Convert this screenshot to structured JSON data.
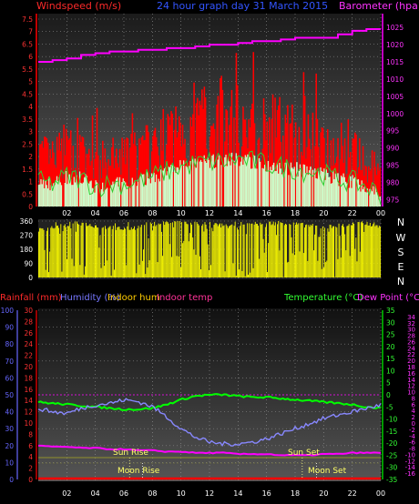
{
  "header": {
    "wind_label": "Windspeed (m/s)",
    "title": "24 hour graph day  31 March 2015",
    "baro_label": "Barometer (hpa)"
  },
  "bottom_header": {
    "rain_label": "Rainfall (mm)",
    "humidity_label": "Humidity (%)",
    "indoor_hum_label": "Indoor hum",
    "indoor_temp_label": "Indoor temp",
    "temp_label": "Temperature (°C)",
    "dew_label": "Dew Point (°C)"
  },
  "compass_labels": [
    "N",
    "W",
    "S",
    "E",
    "N"
  ],
  "annotations": {
    "sun_rise": "Sun Rise",
    "sun_set": "Sun Set",
    "moon_rise": "Moon Rise",
    "moon_set": "Moon Set"
  },
  "colors": {
    "wind": "#ff0000",
    "gust": "#33cc33",
    "wind_avg": "#ccffcc",
    "barometer": "#ff00ff",
    "direction": "#ffff00",
    "temperature": "#00ff00",
    "humidity": "#8888ff",
    "rain": "#ff0000",
    "dew": "#ff00ff",
    "indoor_temp": "#ff00ff",
    "sun": "#ffff00"
  },
  "chart_data": [
    {
      "type": "line",
      "name": "wind-barometer",
      "x_ticks": [
        "02",
        "04",
        "06",
        "08",
        "10",
        "12",
        "14",
        "16",
        "18",
        "20",
        "22",
        "00"
      ],
      "y_left_ticks": [
        0,
        0.5,
        1,
        1.5,
        2,
        2.5,
        3,
        3.5,
        4,
        4.5,
        5,
        5.5,
        6,
        6.5,
        7,
        7.5
      ],
      "y_left_range": [
        0,
        7.5
      ],
      "y_right_ticks": [
        975,
        980,
        985,
        990,
        995,
        1000,
        1005,
        1010,
        1015,
        1020,
        1025
      ],
      "y_right_range": [
        973,
        1029
      ],
      "series": [
        {
          "x": [
            0,
            1,
            2,
            3,
            4,
            5,
            6,
            7,
            8,
            9,
            10,
            11,
            12,
            13,
            14,
            15,
            16,
            17,
            18,
            19,
            20,
            21,
            22,
            23,
            24
          ],
          "values": [
            2.0,
            1.8,
            2.2,
            2.0,
            1.6,
            1.8,
            1.9,
            2.0,
            2.3,
            2.6,
            3.0,
            3.3,
            3.5,
            3.4,
            3.4,
            3.2,
            3.0,
            2.9,
            2.7,
            2.6,
            2.5,
            2.3,
            2.0,
            1.6,
            1.3
          ]
        },
        {
          "x": [
            0,
            1,
            2,
            3,
            4,
            5,
            6,
            7,
            8,
            9,
            10,
            11,
            12,
            13,
            14,
            15,
            16,
            17,
            18,
            19,
            20,
            21,
            22,
            23,
            24
          ],
          "values": [
            1.0,
            0.9,
            1.2,
            1.1,
            0.8,
            0.9,
            0.9,
            1.0,
            1.2,
            1.4,
            1.6,
            1.7,
            1.8,
            1.8,
            1.9,
            1.8,
            1.7,
            1.6,
            1.5,
            1.4,
            1.3,
            1.1,
            1.0,
            0.8,
            0.5
          ]
        },
        {
          "x": [
            0,
            1,
            2,
            3,
            4,
            5,
            6,
            7,
            8,
            9,
            10,
            11,
            12,
            13,
            14,
            15,
            16,
            17,
            18,
            19,
            20,
            21,
            22,
            23,
            24
          ],
          "values": [
            1015,
            1015.5,
            1016,
            1017,
            1017.5,
            1018,
            1018,
            1018.5,
            1018.5,
            1019,
            1019,
            1019.5,
            1020,
            1020,
            1020.5,
            1021,
            1021,
            1021.5,
            1022,
            1022,
            1022,
            1023,
            1024,
            1024.5,
            1024.5
          ]
        }
      ]
    },
    {
      "type": "scatter",
      "name": "wind-direction",
      "x_ticks": [
        "02",
        "04",
        "06",
        "08",
        "10",
        "12",
        "14",
        "16",
        "18",
        "20",
        "22",
        "00"
      ],
      "y_ticks": [
        0,
        90,
        180,
        270,
        360
      ],
      "y_range": [
        0,
        360
      ],
      "series": [
        {
          "x": [
            0,
            1,
            2,
            3,
            4,
            5,
            6,
            7,
            8,
            9,
            10,
            11,
            12,
            13,
            14,
            15,
            16,
            17,
            18,
            19,
            20,
            21,
            22,
            23,
            24
          ],
          "values": [
            300,
            320,
            340,
            345,
            330,
            320,
            310,
            320,
            340,
            350,
            355,
            345,
            340,
            330,
            320,
            340,
            345,
            350,
            340,
            330,
            320,
            330,
            340,
            345,
            330
          ]
        }
      ]
    },
    {
      "type": "line",
      "name": "temp-humidity",
      "x_ticks": [
        "02",
        "04",
        "06",
        "08",
        "10",
        "12",
        "14",
        "16",
        "18",
        "20",
        "22",
        "00"
      ],
      "y_humidity_ticks": [
        0,
        10,
        20,
        30,
        40,
        50,
        60,
        70,
        80,
        90,
        100
      ],
      "y_humidity_range": [
        0,
        100
      ],
      "y_rain_ticks": [
        0,
        2,
        4,
        6,
        8,
        10,
        12,
        14,
        16,
        18,
        20,
        22,
        24,
        26,
        28,
        30
      ],
      "y_rain_range": [
        0,
        30
      ],
      "y_temp_ticks": [
        -35,
        -30,
        -25,
        -20,
        -15,
        -10,
        -5,
        0,
        5,
        10,
        15,
        20,
        25,
        30,
        35
      ],
      "y_temp_range": [
        -35,
        35
      ],
      "y_dew_ticks": [
        -16,
        -14,
        -12,
        -10,
        -8,
        -6,
        -4,
        -2,
        0,
        2,
        4,
        6,
        8,
        10,
        12,
        14,
        16,
        18,
        20,
        22,
        24,
        26,
        28,
        30,
        32,
        34
      ],
      "y_dew_range": [
        -18,
        36
      ],
      "series": [
        {
          "x": [
            0,
            1,
            2,
            3,
            4,
            5,
            6,
            7,
            8,
            9,
            10,
            11,
            12,
            13,
            14,
            15,
            16,
            17,
            18,
            19,
            20,
            21,
            22,
            23,
            24
          ],
          "values": [
            -3,
            -3.5,
            -4,
            -4.5,
            -5,
            -5.5,
            -6,
            -6,
            -5.5,
            -4,
            -2,
            -0.5,
            0,
            0,
            -0.5,
            -1,
            -1,
            -1.5,
            -2,
            -2.5,
            -3,
            -3.5,
            -4,
            -5,
            -5.5
          ]
        },
        {
          "x": [
            0,
            1,
            2,
            3,
            4,
            5,
            6,
            7,
            8,
            9,
            10,
            11,
            12,
            13,
            14,
            15,
            16,
            17,
            18,
            19,
            20,
            21,
            22,
            23,
            24
          ],
          "values": [
            42,
            40,
            39,
            42,
            44,
            45,
            47,
            46,
            43,
            37,
            30,
            25,
            22,
            21,
            21,
            22,
            24,
            27,
            30,
            33,
            36,
            38,
            40,
            42,
            44
          ]
        },
        {
          "x": [
            0,
            1,
            2,
            3,
            4,
            5,
            6,
            7,
            8,
            9,
            10,
            11,
            12,
            13,
            14,
            15,
            16,
            17,
            18,
            19,
            20,
            21,
            22,
            23,
            24
          ],
          "values": [
            -21,
            -21.5,
            -21.5,
            -22,
            -22,
            -22.5,
            -22.5,
            -23,
            -23,
            -23.5,
            -23.5,
            -24,
            -24,
            -24,
            -24.5,
            -24.5,
            -24.5,
            -25,
            -25,
            -25,
            -24.5,
            -24.5,
            -24,
            -24,
            -24
          ]
        },
        {
          "x": [
            0,
            1,
            2,
            3,
            4,
            5,
            6,
            7,
            8,
            9,
            10,
            11,
            12,
            13,
            14,
            15,
            16,
            17,
            18,
            19,
            20,
            21,
            22,
            23,
            24
          ],
          "values": [
            0,
            0,
            0,
            0,
            0,
            0,
            0,
            0,
            0,
            0,
            0,
            0,
            0,
            0,
            0,
            0,
            0,
            0,
            0,
            0,
            0,
            0,
            0,
            0,
            0
          ]
        },
        {
          "x": [
            0,
            24
          ],
          "values": [
            0,
            0
          ]
        }
      ],
      "markers": {
        "sun_rise_hour": 6.4,
        "sun_set_hour": 18.5,
        "moon_rise_hour": 7.3,
        "moon_set_hour": 19.5
      }
    }
  ]
}
